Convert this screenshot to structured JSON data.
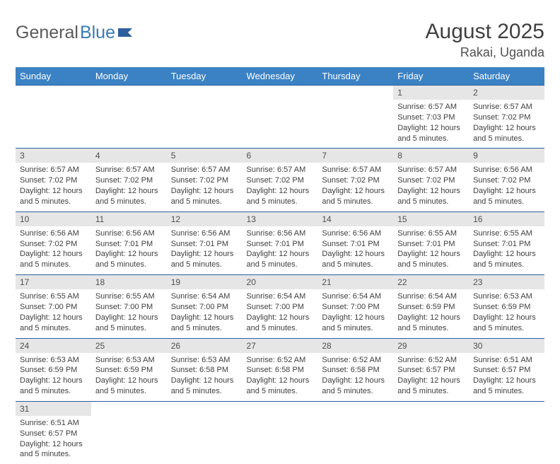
{
  "logo": {
    "text1": "General",
    "text2": "Blue"
  },
  "title": "August 2025",
  "location": "Rakai, Uganda",
  "colors": {
    "header_bg": "#3b82c4",
    "header_text": "#ffffff",
    "daynum_bg": "#e6e6e6",
    "border": "#2d5f9e",
    "text": "#404040",
    "logo_gray": "#5a5a5a",
    "logo_blue": "#3a7ab8"
  },
  "weekdays": [
    "Sunday",
    "Monday",
    "Tuesday",
    "Wednesday",
    "Thursday",
    "Friday",
    "Saturday"
  ],
  "weeks": [
    [
      null,
      null,
      null,
      null,
      null,
      {
        "n": "1",
        "sr": "6:57 AM",
        "ss": "7:03 PM",
        "dl": "12 hours and 5 minutes."
      },
      {
        "n": "2",
        "sr": "6:57 AM",
        "ss": "7:02 PM",
        "dl": "12 hours and 5 minutes."
      }
    ],
    [
      {
        "n": "3",
        "sr": "6:57 AM",
        "ss": "7:02 PM",
        "dl": "12 hours and 5 minutes."
      },
      {
        "n": "4",
        "sr": "6:57 AM",
        "ss": "7:02 PM",
        "dl": "12 hours and 5 minutes."
      },
      {
        "n": "5",
        "sr": "6:57 AM",
        "ss": "7:02 PM",
        "dl": "12 hours and 5 minutes."
      },
      {
        "n": "6",
        "sr": "6:57 AM",
        "ss": "7:02 PM",
        "dl": "12 hours and 5 minutes."
      },
      {
        "n": "7",
        "sr": "6:57 AM",
        "ss": "7:02 PM",
        "dl": "12 hours and 5 minutes."
      },
      {
        "n": "8",
        "sr": "6:57 AM",
        "ss": "7:02 PM",
        "dl": "12 hours and 5 minutes."
      },
      {
        "n": "9",
        "sr": "6:56 AM",
        "ss": "7:02 PM",
        "dl": "12 hours and 5 minutes."
      }
    ],
    [
      {
        "n": "10",
        "sr": "6:56 AM",
        "ss": "7:02 PM",
        "dl": "12 hours and 5 minutes."
      },
      {
        "n": "11",
        "sr": "6:56 AM",
        "ss": "7:01 PM",
        "dl": "12 hours and 5 minutes."
      },
      {
        "n": "12",
        "sr": "6:56 AM",
        "ss": "7:01 PM",
        "dl": "12 hours and 5 minutes."
      },
      {
        "n": "13",
        "sr": "6:56 AM",
        "ss": "7:01 PM",
        "dl": "12 hours and 5 minutes."
      },
      {
        "n": "14",
        "sr": "6:56 AM",
        "ss": "7:01 PM",
        "dl": "12 hours and 5 minutes."
      },
      {
        "n": "15",
        "sr": "6:55 AM",
        "ss": "7:01 PM",
        "dl": "12 hours and 5 minutes."
      },
      {
        "n": "16",
        "sr": "6:55 AM",
        "ss": "7:01 PM",
        "dl": "12 hours and 5 minutes."
      }
    ],
    [
      {
        "n": "17",
        "sr": "6:55 AM",
        "ss": "7:00 PM",
        "dl": "12 hours and 5 minutes."
      },
      {
        "n": "18",
        "sr": "6:55 AM",
        "ss": "7:00 PM",
        "dl": "12 hours and 5 minutes."
      },
      {
        "n": "19",
        "sr": "6:54 AM",
        "ss": "7:00 PM",
        "dl": "12 hours and 5 minutes."
      },
      {
        "n": "20",
        "sr": "6:54 AM",
        "ss": "7:00 PM",
        "dl": "12 hours and 5 minutes."
      },
      {
        "n": "21",
        "sr": "6:54 AM",
        "ss": "7:00 PM",
        "dl": "12 hours and 5 minutes."
      },
      {
        "n": "22",
        "sr": "6:54 AM",
        "ss": "6:59 PM",
        "dl": "12 hours and 5 minutes."
      },
      {
        "n": "23",
        "sr": "6:53 AM",
        "ss": "6:59 PM",
        "dl": "12 hours and 5 minutes."
      }
    ],
    [
      {
        "n": "24",
        "sr": "6:53 AM",
        "ss": "6:59 PM",
        "dl": "12 hours and 5 minutes."
      },
      {
        "n": "25",
        "sr": "6:53 AM",
        "ss": "6:59 PM",
        "dl": "12 hours and 5 minutes."
      },
      {
        "n": "26",
        "sr": "6:53 AM",
        "ss": "6:58 PM",
        "dl": "12 hours and 5 minutes."
      },
      {
        "n": "27",
        "sr": "6:52 AM",
        "ss": "6:58 PM",
        "dl": "12 hours and 5 minutes."
      },
      {
        "n": "28",
        "sr": "6:52 AM",
        "ss": "6:58 PM",
        "dl": "12 hours and 5 minutes."
      },
      {
        "n": "29",
        "sr": "6:52 AM",
        "ss": "6:57 PM",
        "dl": "12 hours and 5 minutes."
      },
      {
        "n": "30",
        "sr": "6:51 AM",
        "ss": "6:57 PM",
        "dl": "12 hours and 5 minutes."
      }
    ],
    [
      {
        "n": "31",
        "sr": "6:51 AM",
        "ss": "6:57 PM",
        "dl": "12 hours and 5 minutes."
      },
      null,
      null,
      null,
      null,
      null,
      null
    ]
  ],
  "labels": {
    "sunrise": "Sunrise:",
    "sunset": "Sunset:",
    "daylight": "Daylight:"
  }
}
